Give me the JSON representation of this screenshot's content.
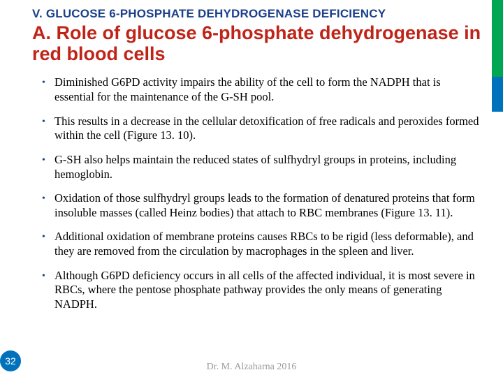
{
  "colors": {
    "section_title": "#1b3f8b",
    "main_title": "#c02418",
    "bullet_dot": "#1b3f8b",
    "stripe_green": "#00a651",
    "stripe_blue": "#0072bc",
    "footer_text": "#9a9a9a",
    "background": "#ffffff"
  },
  "typography": {
    "section_title_fontsize": 17,
    "main_title_fontsize": 27,
    "body_fontsize": 16.5,
    "footer_fontsize": 14
  },
  "section_title": "V. GLUCOSE 6-PHOSPHATE DEHYDROGENASE DEFICIENCY",
  "main_title": "A. Role of glucose 6-phosphate dehydrogenase in red blood cells",
  "bullets": [
    "Diminished G6PD activity impairs the ability of the cell to form the NADPH that is essential for the maintenance of the G-SH pool.",
    "This results in a decrease in the cellular detoxification of free radicals and peroxides formed within the cell (Figure 13. 10).",
    "G-SH also helps maintain the reduced states of sulfhydryl groups in proteins, including hemoglobin.",
    "Oxidation of those sulfhydryl groups leads to the formation of denatured proteins that form insoluble masses (called Heinz bodies) that attach to RBC membranes (Figure 13. 11).",
    "Additional oxidation of membrane proteins causes RBCs to be rigid (less deformable), and they are removed from the circulation by macrophages in the spleen and liver.",
    "Although G6PD deficiency occurs in all cells of the affected individual, it is most severe in RBCs, where the pentose phosphate pathway provides the only means of generating NADPH."
  ],
  "page_number": "32",
  "footer": "Dr. M. Alzaharna 2016"
}
